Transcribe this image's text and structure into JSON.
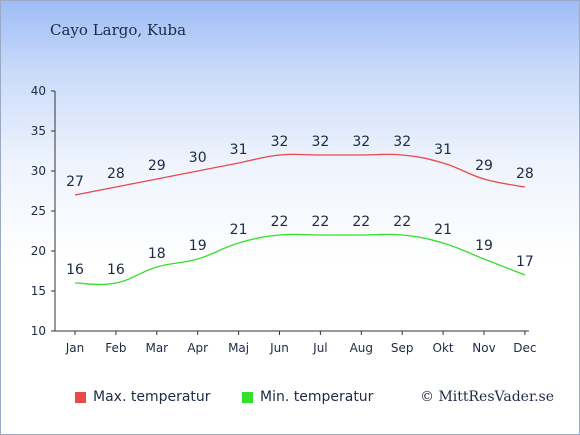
{
  "title": "Cayo Largo, Kuba",
  "credit": "© MittResVader.se",
  "chart_data": {
    "type": "line",
    "categories": [
      "Jan",
      "Feb",
      "Mar",
      "Apr",
      "Maj",
      "Jun",
      "Jul",
      "Aug",
      "Sep",
      "Okt",
      "Nov",
      "Dec"
    ],
    "ylim": [
      10,
      40
    ],
    "yticks": [
      10,
      15,
      20,
      25,
      30,
      35,
      40
    ],
    "series": [
      {
        "name": "Max. temperatur",
        "color": "#e84a4a",
        "values": [
          27,
          28,
          29,
          30,
          31,
          32,
          32,
          32,
          32,
          31,
          29,
          28
        ]
      },
      {
        "name": "Min. temperatur",
        "color": "#33e02a",
        "values": [
          16,
          16,
          18,
          19,
          21,
          22,
          22,
          22,
          22,
          21,
          19,
          17
        ]
      }
    ],
    "grid": false,
    "legend": "bottom"
  }
}
